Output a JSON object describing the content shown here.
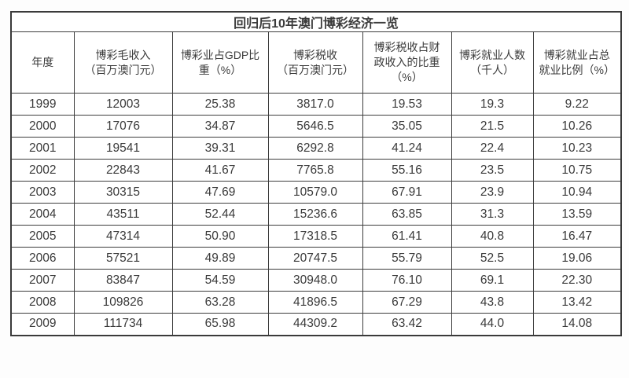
{
  "chart_data": {
    "type": "table",
    "title": "回归后10年澳门博彩经济一览",
    "columns": [
      "年度",
      "博彩毛收入\n（百万澳门元）",
      "博彩业占GDP比\n重（%）",
      "博彩税收\n（百万澳门元）",
      "博彩税收占财\n政收入的比重\n（%）",
      "博彩就业人数\n（千人）",
      "博彩就业占总\n就业比例（%）"
    ],
    "rows": [
      [
        "1999",
        "12003",
        "25.38",
        "3817.0",
        "19.53",
        "19.3",
        "9.22"
      ],
      [
        "2000",
        "17076",
        "34.87",
        "5646.5",
        "35.05",
        "21.5",
        "10.26"
      ],
      [
        "2001",
        "19541",
        "39.31",
        "6292.8",
        "41.24",
        "22.4",
        "10.23"
      ],
      [
        "2002",
        "22843",
        "41.67",
        "7765.8",
        "55.16",
        "23.5",
        "10.75"
      ],
      [
        "2003",
        "30315",
        "47.69",
        "10579.0",
        "67.91",
        "23.9",
        "10.94"
      ],
      [
        "2004",
        "43511",
        "52.44",
        "15236.6",
        "63.85",
        "31.3",
        "13.59"
      ],
      [
        "2005",
        "47314",
        "50.90",
        "17318.5",
        "61.41",
        "40.8",
        "16.47"
      ],
      [
        "2006",
        "57521",
        "49.89",
        "20747.5",
        "55.79",
        "52.5",
        "19.06"
      ],
      [
        "2007",
        "83847",
        "54.59",
        "30948.0",
        "76.10",
        "69.1",
        "22.30"
      ],
      [
        "2008",
        "109826",
        "63.28",
        "41896.5",
        "67.29",
        "43.8",
        "13.42"
      ],
      [
        "2009",
        "111734",
        "65.98",
        "44309.2",
        "63.42",
        "44.0",
        "14.08"
      ]
    ],
    "layout_hints": {
      "border_color": "#3d3d3d",
      "text_color": "#3a3a3a",
      "background": "#ffffff",
      "grid": "on"
    }
  }
}
